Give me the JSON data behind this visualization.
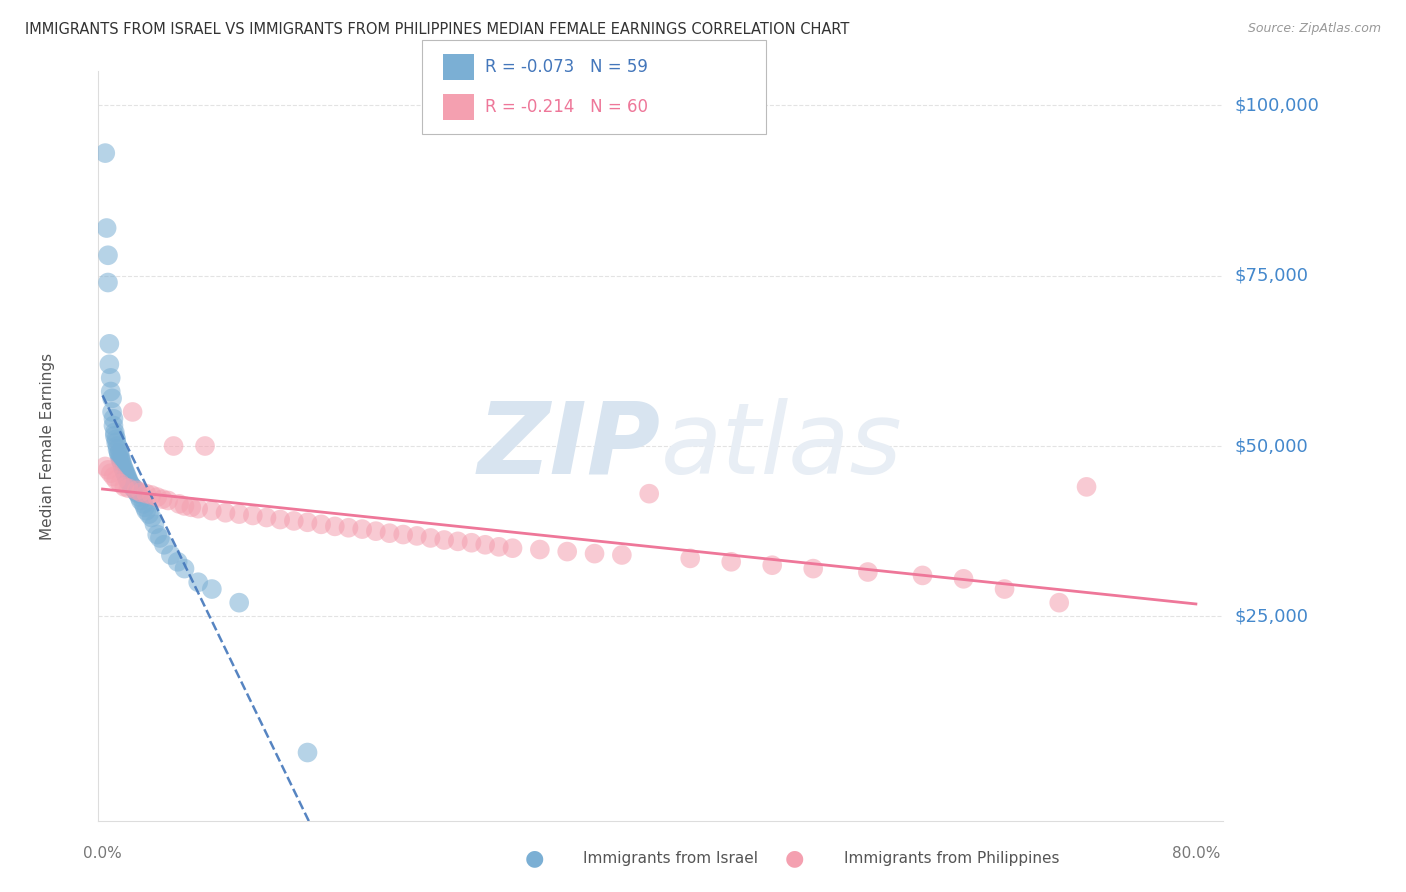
{
  "title": "IMMIGRANTS FROM ISRAEL VS IMMIGRANTS FROM PHILIPPINES MEDIAN FEMALE EARNINGS CORRELATION CHART",
  "source": "Source: ZipAtlas.com",
  "ylabel": "Median Female Earnings",
  "ymin": -5000,
  "ymax": 105000,
  "xmin": -0.003,
  "xmax": 0.82,
  "israel_R": -0.073,
  "israel_N": 59,
  "philippines_R": -0.214,
  "philippines_N": 60,
  "israel_color": "#7BAFD4",
  "philippines_color": "#F4A0B0",
  "israel_line_color": "#4477BB",
  "philippines_line_color": "#EE7799",
  "background_color": "#FFFFFF",
  "grid_color": "#DDDDDD",
  "watermark": "ZIPatlas",
  "title_color": "#333333",
  "source_color": "#999999",
  "ylabel_color": "#555555",
  "tick_label_color": "#4488CC",
  "bottom_label_color": "#777777",
  "legend_text_color_israel": "#4477BB",
  "legend_text_color_phil": "#EE7799",
  "israel_x": [
    0.002,
    0.003,
    0.004,
    0.004,
    0.005,
    0.005,
    0.006,
    0.006,
    0.007,
    0.007,
    0.008,
    0.008,
    0.009,
    0.009,
    0.01,
    0.01,
    0.011,
    0.011,
    0.012,
    0.012,
    0.013,
    0.013,
    0.014,
    0.014,
    0.015,
    0.015,
    0.016,
    0.016,
    0.017,
    0.017,
    0.018,
    0.018,
    0.019,
    0.019,
    0.02,
    0.021,
    0.022,
    0.023,
    0.024,
    0.025,
    0.026,
    0.027,
    0.028,
    0.03,
    0.031,
    0.032,
    0.034,
    0.036,
    0.038,
    0.04,
    0.042,
    0.045,
    0.05,
    0.055,
    0.06,
    0.07,
    0.08,
    0.1,
    0.15
  ],
  "israel_y": [
    93000,
    82000,
    78000,
    74000,
    65000,
    62000,
    60000,
    58000,
    57000,
    55000,
    54000,
    53000,
    52000,
    51500,
    51000,
    50500,
    50000,
    49500,
    49000,
    48800,
    48500,
    48000,
    47800,
    47500,
    47000,
    46800,
    46500,
    46200,
    46000,
    45800,
    45500,
    45200,
    45000,
    44800,
    44500,
    44200,
    44000,
    43800,
    43500,
    43200,
    43000,
    42500,
    42000,
    41500,
    41000,
    40500,
    40000,
    39500,
    38500,
    37000,
    36500,
    35500,
    34000,
    33000,
    32000,
    30000,
    29000,
    27000,
    5000
  ],
  "philippines_x": [
    0.002,
    0.004,
    0.006,
    0.008,
    0.01,
    0.013,
    0.016,
    0.019,
    0.022,
    0.025,
    0.028,
    0.032,
    0.036,
    0.04,
    0.044,
    0.048,
    0.052,
    0.056,
    0.06,
    0.065,
    0.07,
    0.075,
    0.08,
    0.09,
    0.1,
    0.11,
    0.12,
    0.13,
    0.14,
    0.15,
    0.16,
    0.17,
    0.18,
    0.19,
    0.2,
    0.21,
    0.22,
    0.23,
    0.24,
    0.25,
    0.26,
    0.27,
    0.28,
    0.29,
    0.3,
    0.32,
    0.34,
    0.36,
    0.38,
    0.4,
    0.43,
    0.46,
    0.49,
    0.52,
    0.56,
    0.6,
    0.63,
    0.66,
    0.7,
    0.72
  ],
  "philippines_y": [
    47000,
    46500,
    46000,
    45500,
    45000,
    44500,
    44000,
    43800,
    55000,
    43500,
    43200,
    43000,
    42800,
    42500,
    42200,
    42000,
    50000,
    41500,
    41200,
    41000,
    40800,
    50000,
    40500,
    40200,
    40000,
    39800,
    39500,
    39200,
    39000,
    38800,
    38500,
    38200,
    38000,
    37800,
    37500,
    37200,
    37000,
    36800,
    36500,
    36200,
    36000,
    35800,
    35500,
    35200,
    35000,
    34800,
    34500,
    34200,
    34000,
    43000,
    33500,
    33000,
    32500,
    32000,
    31500,
    31000,
    30500,
    29000,
    27000,
    44000
  ]
}
